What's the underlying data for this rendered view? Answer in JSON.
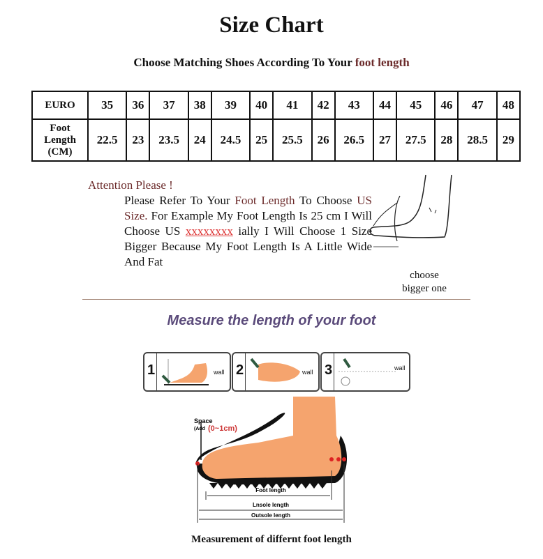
{
  "title": "Size Chart",
  "subtitle": {
    "prefix": "Choose Matching Shoes According To Your ",
    "highlight": "foot length"
  },
  "table": {
    "euro_label": "EURO",
    "length_label": [
      "Foot",
      "Length",
      "(CM)"
    ],
    "euro": [
      "35",
      "36",
      "37",
      "38",
      "39",
      "40",
      "41",
      "42",
      "43",
      "44",
      "45",
      "46",
      "47",
      "48"
    ],
    "cm": [
      "22.5",
      "23",
      "23.5",
      "24",
      "24.5",
      "25",
      "25.5",
      "26",
      "26.5",
      "27",
      "27.5",
      "28",
      "28.5",
      "29"
    ]
  },
  "note": {
    "heading": "Attention Please !",
    "p1": "Please Refer To Your ",
    "p2": "Foot Length",
    "p3": " To Choose ",
    "p4": "US Size.",
    "p5": " For Example My Foot Length Is 25 cm I Will Choose US ",
    "p6": "xxxxxxxx",
    "p7": " ially I Will Choose 1 Size Bigger Because My Foot Length Is A Little Wide And Fat"
  },
  "choose_bigger": [
    "choose",
    "bigger one"
  ],
  "measure_heading": "Measure the length of your foot",
  "steps": [
    {
      "num": "1",
      "wall": "wall"
    },
    {
      "num": "2",
      "wall": "wall"
    },
    {
      "num": "3",
      "wall": "wall"
    }
  ],
  "diagram": {
    "space": "Space",
    "add_prefix": "(Add",
    "add_value": "(0~1cm)",
    "foot_length": "Foot length",
    "insole_length": "Lnsole length",
    "outsole_length": "Outsole length"
  },
  "caption": "Measurement of differnt foot length",
  "colors": {
    "accent": "#6b2a2a",
    "heading": "#5a4a7a",
    "skin": "#f5a46e"
  }
}
